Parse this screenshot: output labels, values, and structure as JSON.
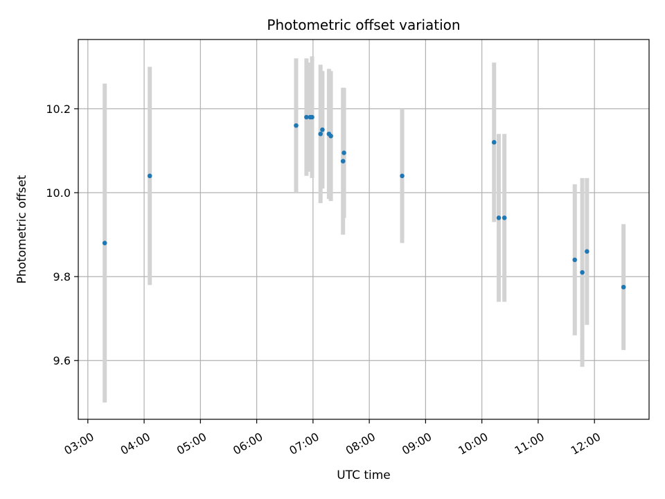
{
  "chart_data": {
    "type": "scatter",
    "title": "Photometric offset variation",
    "xlabel": "UTC time",
    "ylabel": "Photometric offset",
    "x_tick_labels": [
      "03:00",
      "04:00",
      "05:00",
      "06:00",
      "07:00",
      "08:00",
      "09:00",
      "10:00",
      "11:00",
      "12:00"
    ],
    "x_ticks_hours": [
      3,
      4,
      5,
      6,
      7,
      8,
      9,
      10,
      11,
      12
    ],
    "xlim_hours": [
      2.83,
      12.97
    ],
    "y_ticks": [
      9.6,
      9.8,
      10.0,
      10.2
    ],
    "y_tick_labels": [
      "9.6",
      "9.8",
      "10.0",
      "10.2"
    ],
    "ylim": [
      9.46,
      10.365
    ],
    "grid": true,
    "marker_color": "#1f77b4",
    "errorbar_color": "#d3d3d3",
    "points": [
      {
        "time": "03:18",
        "y": 9.88,
        "err": 0.38
      },
      {
        "time": "04:06",
        "y": 10.04,
        "err": 0.26
      },
      {
        "time": "06:42",
        "y": 10.16,
        "err": 0.16
      },
      {
        "time": "06:53",
        "y": 10.18,
        "err": 0.14
      },
      {
        "time": "06:57",
        "y": 10.18,
        "err": 0.13
      },
      {
        "time": "06:59",
        "y": 10.18,
        "err": 0.145
      },
      {
        "time": "07:08",
        "y": 10.14,
        "err": 0.165
      },
      {
        "time": "07:10",
        "y": 10.15,
        "err": 0.14
      },
      {
        "time": "07:17",
        "y": 10.14,
        "err": 0.155
      },
      {
        "time": "07:19",
        "y": 10.135,
        "err": 0.155
      },
      {
        "time": "07:32",
        "y": 10.075,
        "err": 0.175
      },
      {
        "time": "07:33",
        "y": 10.095,
        "err": 0.155
      },
      {
        "time": "08:35",
        "y": 10.04,
        "err": 0.16
      },
      {
        "time": "10:13",
        "y": 10.12,
        "err": 0.19
      },
      {
        "time": "10:18",
        "y": 9.94,
        "err": 0.2
      },
      {
        "time": "10:24",
        "y": 9.94,
        "err": 0.2
      },
      {
        "time": "11:39",
        "y": 9.84,
        "err": 0.18
      },
      {
        "time": "11:47",
        "y": 9.81,
        "err": 0.225
      },
      {
        "time": "11:52",
        "y": 9.86,
        "err": 0.175
      },
      {
        "time": "12:31",
        "y": 9.775,
        "err": 0.15
      }
    ]
  }
}
